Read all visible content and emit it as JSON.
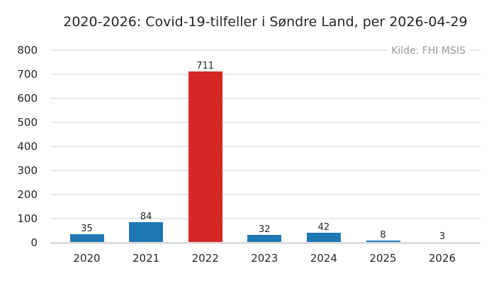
{
  "title": "2020-2026: Covid-19-tilfeller i Søndre Land, per 2026-04-29",
  "source_note": "Kilde: FHI MSIS",
  "colors": {
    "bar_default": "#1f77b4",
    "bar_highlight": "#d62728",
    "grid": "#e9e9e9",
    "axis_line": "#dcdcdc",
    "text": "#262626",
    "muted_text": "#989898",
    "background": "#ffffff"
  },
  "chart_data": {
    "type": "bar",
    "title": "2020-2026: Covid-19-tilfeller i Søndre Land, per 2026-04-29",
    "categories": [
      "2020",
      "2021",
      "2022",
      "2023",
      "2024",
      "2025",
      "2026"
    ],
    "values": [
      35,
      84,
      711,
      32,
      42,
      8,
      3
    ],
    "value_labels_shown": true,
    "highlighted_category": "2022",
    "annotation": "Kilde: FHI MSIS",
    "annotation_position": "top-right",
    "xlabel": "",
    "ylabel": "",
    "ylim": [
      0,
      800
    ],
    "ytick_step": 100,
    "yticks": [
      0,
      100,
      200,
      300,
      400,
      500,
      600,
      700,
      800
    ],
    "grid": "horizontal",
    "legend": "none"
  }
}
